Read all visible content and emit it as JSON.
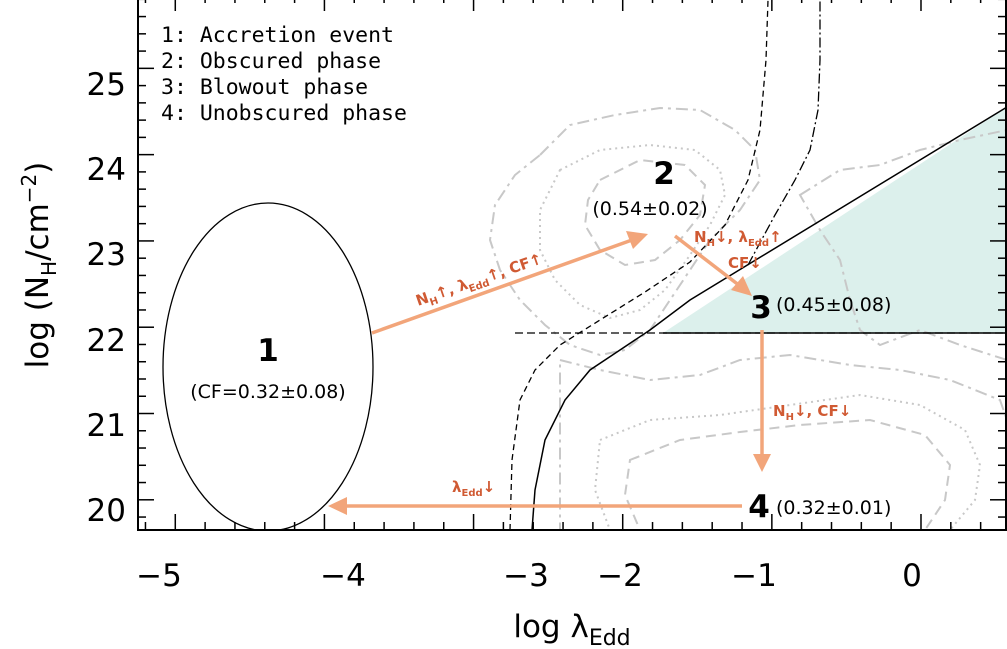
{
  "chart_data": {
    "type": "diagram",
    "xlabel_main": "log λ",
    "xlabel_sub": "Edd",
    "ylabel_main": "log (N",
    "ylabel_sub": "H",
    "ylabel_unit": "/cm",
    "ylabel_exp": "−2",
    "ylabel_close": ")",
    "xlim": [
      -5.25,
      0.57
    ],
    "ylim": [
      19.65,
      25.85
    ],
    "xticks": [
      -5,
      -4,
      -3,
      -2,
      -1,
      0
    ],
    "xtick_labels": [
      "−5",
      "−4",
      "−3",
      "−2",
      "−1",
      "0"
    ],
    "yticks": [
      20,
      21,
      22,
      23,
      24,
      25
    ],
    "ytick_labels": [
      "20",
      "21",
      "22",
      "23",
      "24",
      "25"
    ],
    "legend": [
      "1: Accretion event",
      "2: Obscured phase",
      "3: Blowout phase",
      "4: Unobscured phase"
    ],
    "phases": [
      {
        "label": "1",
        "value": "(CF=0.32±0.08)",
        "x": -4.3,
        "y": 21.8
      },
      {
        "label": "2",
        "value": "(0.54±0.02)",
        "x": -1.75,
        "y": 23.87
      },
      {
        "label": "3",
        "value": "(0.45±0.08)",
        "x": -1.0,
        "y": 22.25
      },
      {
        "label": "4",
        "value": "(0.32±0.01)",
        "x": -1.0,
        "y": 20.05
      }
    ],
    "transitions": {
      "t12": {
        "a": "N",
        "a_sub": "H",
        "a_arrow": "↑",
        "b": ", λ",
        "b_sub": "Edd",
        "b_arrow": "↑",
        "c": ", CF↑"
      },
      "t23": {
        "a": "N",
        "a_sub": "H",
        "a_arrow": "↓",
        "b": ", λ",
        "b_sub": "Edd",
        "b_arrow": "↑",
        "c": "CF↓"
      },
      "t34": {
        "a": "N",
        "a_sub": "H",
        "a_arrow": "↓",
        "c": ", CF↓"
      },
      "t41": {
        "a": "λ",
        "a_sub": "Edd",
        "a_arrow": "↓"
      }
    },
    "ellipse": {
      "cx": -4.3,
      "cy": 21.8,
      "rx": 1.2,
      "ry": 1.93
    },
    "blowout_region": {
      "ymin": 22.0,
      "line": [
        [
          -1.65,
          22.0
        ],
        [
          0.57,
          24.63
        ]
      ]
    },
    "colors": {
      "arrow": "#f2a57a",
      "text_annot": "#d05a33",
      "region_fill": "#dcf0ec",
      "contour": "#c8c8c8"
    }
  }
}
